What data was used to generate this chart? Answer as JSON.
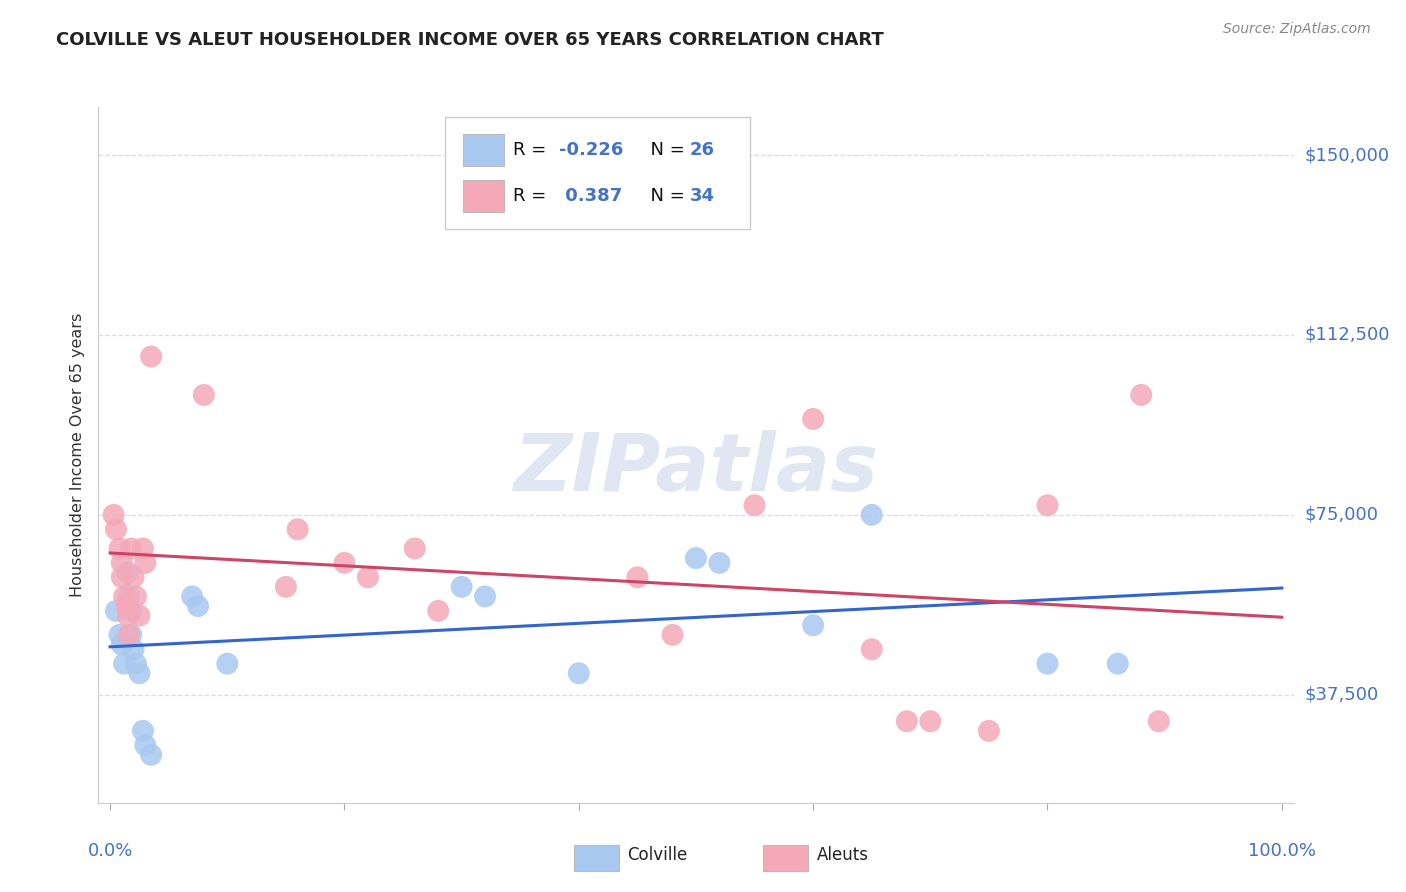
{
  "title": "COLVILLE VS ALEUT HOUSEHOLDER INCOME OVER 65 YEARS CORRELATION CHART",
  "source": "Source: ZipAtlas.com",
  "ylabel": "Householder Income Over 65 years",
  "y_tick_labels": [
    "$37,500",
    "$75,000",
    "$112,500",
    "$150,000"
  ],
  "y_tick_values": [
    37500,
    75000,
    112500,
    150000
  ],
  "y_min": 15000,
  "y_max": 160000,
  "x_min": -0.01,
  "x_max": 1.01,
  "colville_color": "#a8c8f0",
  "aleuts_color": "#f4a8b8",
  "colville_line_color": "#3366cc",
  "aleuts_line_color": "#cc4466",
  "background_color": "#ffffff",
  "grid_color": "#dddddd",
  "watermark_text": "ZIPatlas",
  "watermark_color": "#c8d4e8",
  "colville_x": [
    0.005,
    0.008,
    0.01,
    0.012,
    0.015,
    0.016,
    0.018,
    0.018,
    0.02,
    0.022,
    0.025,
    0.028,
    0.03,
    0.035,
    0.07,
    0.075,
    0.1,
    0.3,
    0.32,
    0.4,
    0.5,
    0.52,
    0.6,
    0.65,
    0.8,
    0.86
  ],
  "colville_y": [
    55000,
    50000,
    48000,
    44000,
    63000,
    58000,
    55000,
    50000,
    47000,
    44000,
    42000,
    30000,
    27000,
    25000,
    58000,
    56000,
    44000,
    60000,
    58000,
    42000,
    66000,
    65000,
    52000,
    75000,
    44000,
    44000
  ],
  "aleuts_x": [
    0.003,
    0.005,
    0.008,
    0.01,
    0.01,
    0.012,
    0.014,
    0.015,
    0.016,
    0.018,
    0.02,
    0.022,
    0.025,
    0.028,
    0.03,
    0.035,
    0.08,
    0.15,
    0.16,
    0.2,
    0.22,
    0.26,
    0.28,
    0.45,
    0.48,
    0.55,
    0.6,
    0.65,
    0.68,
    0.7,
    0.75,
    0.8,
    0.88,
    0.895
  ],
  "aleuts_y": [
    75000,
    72000,
    68000,
    65000,
    62000,
    58000,
    56000,
    54000,
    50000,
    68000,
    62000,
    58000,
    54000,
    68000,
    65000,
    108000,
    100000,
    60000,
    72000,
    65000,
    62000,
    68000,
    55000,
    62000,
    50000,
    77000,
    95000,
    47000,
    32000,
    32000,
    30000,
    77000,
    100000,
    32000
  ]
}
